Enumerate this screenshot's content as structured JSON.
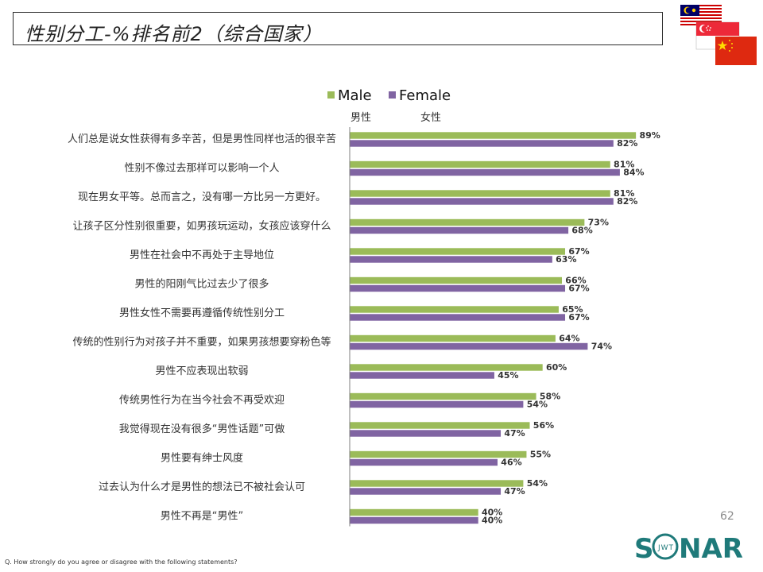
{
  "title": "性别分工-%排名前2（综合国家）",
  "page_number": "62",
  "question": "Q. How strongly do you agree or disagree with the following statements?",
  "logo": {
    "name": "SONAR",
    "sub": "JWT",
    "color": "#1f7a7a"
  },
  "flags": [
    "malaysia-flag",
    "singapore-flag",
    "china-flag"
  ],
  "colors": {
    "male": "#9bbb59",
    "female": "#8064a2"
  },
  "chart_data": {
    "type": "bar",
    "orientation": "horizontal",
    "categories": [
      "人们总是说女性获得有多辛苦，但是男性同样也活的很辛苦",
      "性别不像过去那样可以影响一个人",
      "现在男女平等。总而言之，没有哪一方比另一方更好。",
      "让孩子区分性别很重要，如男孩玩运动，女孩应该穿什么",
      "男性在社会中不再处于主导地位",
      "男性的阳刚气比过去少了很多",
      "男性女性不需要再遵循传统性别分工",
      "传统的性别行为对孩子并不重要，如果男孩想要穿粉色等",
      "男性不应表现出软弱",
      "传统男性行为在当今社会不再受欢迎",
      "我觉得现在没有很多“男性话题”可做",
      "男性要有绅士风度",
      "过去认为什么才是男性的想法已不被社会认可",
      "男性不再是“男性”"
    ],
    "series": [
      {
        "name": "Male",
        "sublabel": "男性",
        "values": [
          89,
          81,
          81,
          73,
          67,
          66,
          65,
          64,
          60,
          58,
          56,
          55,
          54,
          40
        ]
      },
      {
        "name": "Female",
        "sublabel": "女性",
        "values": [
          82,
          84,
          82,
          68,
          63,
          67,
          67,
          74,
          45,
          54,
          47,
          46,
          47,
          40
        ]
      }
    ],
    "value_suffix": "%",
    "xlim": [
      0,
      100
    ],
    "legend_position": "top"
  }
}
